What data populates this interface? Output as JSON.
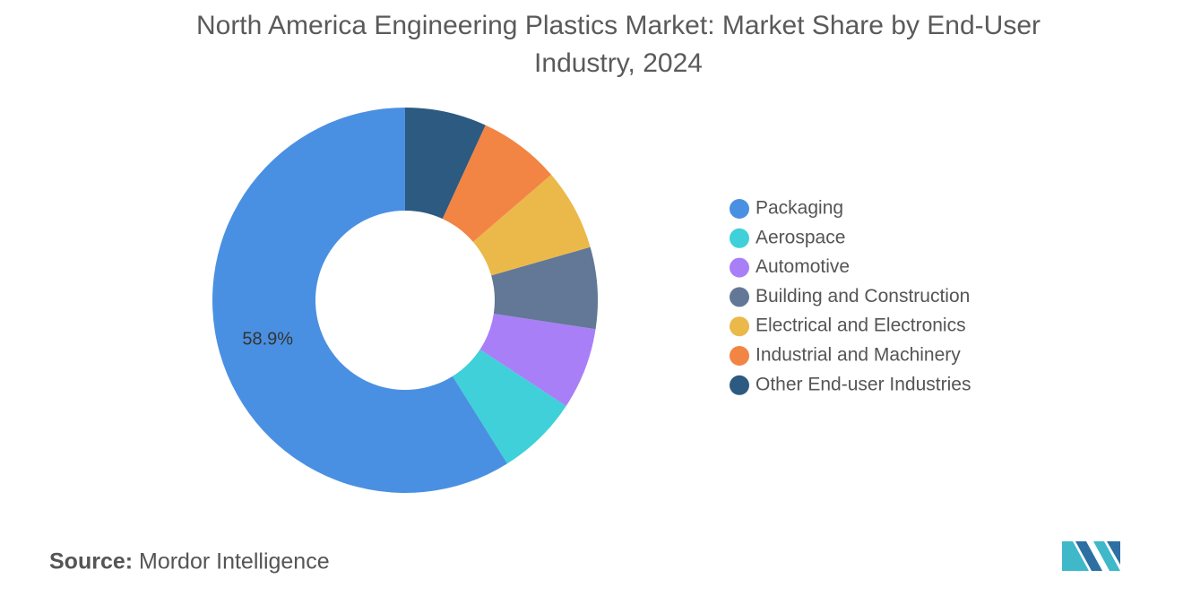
{
  "chart_data": {
    "type": "donut",
    "title": "North America Engineering Plastics Market: Market Share by End-User Industry, 2024",
    "categories": [
      "Packaging",
      "Aerospace",
      "Automotive",
      "Building and Construction",
      "Electrical and Electronics",
      "Industrial and Machinery",
      "Other End-user Industries"
    ],
    "values": [
      58.9,
      6.85,
      6.85,
      6.85,
      6.85,
      6.85,
      6.85
    ],
    "value_labels": [
      "58.9%",
      null,
      null,
      null,
      null,
      null,
      null
    ],
    "colors": [
      "#4a90e2",
      "#3fd0d9",
      "#a97ff7",
      "#627896",
      "#ebb84a",
      "#f28444",
      "#2d5a80"
    ],
    "legend": "right",
    "source_label": "Source:",
    "source": "Mordor Intelligence"
  }
}
